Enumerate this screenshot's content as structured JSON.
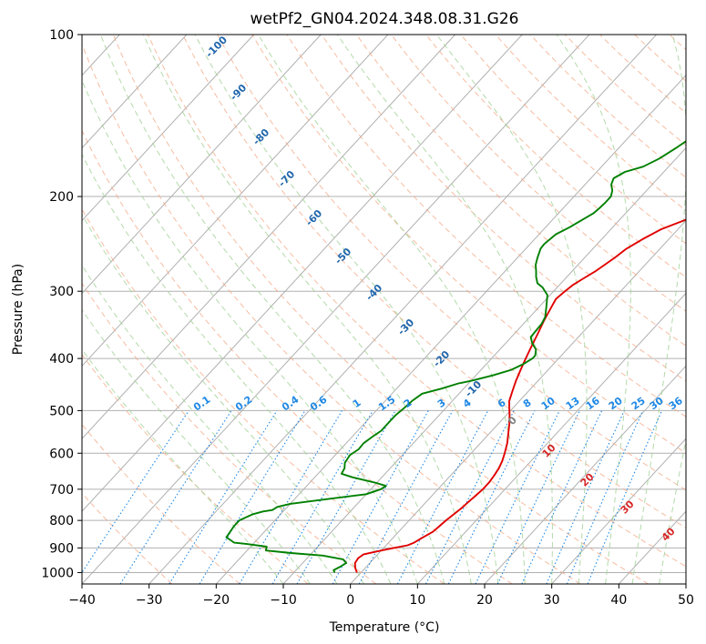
{
  "chart_data": {
    "type": "line",
    "title": "wetPf2_GN04.2024.348.08.31.G26",
    "xlabel": "Temperature (°C)",
    "ylabel": "Pressure (hPa)",
    "xlim": [
      -40,
      50
    ],
    "ylim": [
      1050,
      100
    ],
    "y_scale": "log",
    "x_ticks": [
      "−40",
      "−30",
      "−20",
      "−10",
      "0",
      "10",
      "20",
      "30",
      "40",
      "50"
    ],
    "y_ticks": [
      {
        "p": 100,
        "label": "100"
      },
      {
        "p": 200,
        "label": "200"
      },
      {
        "p": 300,
        "label": "300"
      },
      {
        "p": 400,
        "label": "400"
      },
      {
        "p": 500,
        "label": "500"
      },
      {
        "p": 600,
        "label": "600"
      },
      {
        "p": 700,
        "label": "700"
      },
      {
        "p": 800,
        "label": "800"
      },
      {
        "p": 900,
        "label": "900"
      },
      {
        "p": 1000,
        "label": "1000"
      }
    ],
    "grid": true,
    "series": [
      {
        "color": "#e00000",
        "points": [
          [
            -0.6,
            1000
          ],
          [
            -1.5,
            980
          ],
          [
            -2.2,
            960
          ],
          [
            -2.4,
            940
          ],
          [
            -2.1,
            925
          ],
          [
            0.0,
            910
          ],
          [
            1.5,
            900
          ],
          [
            3.2,
            890
          ],
          [
            3.8,
            880
          ],
          [
            4.4,
            860
          ],
          [
            5.1,
            840
          ],
          [
            5.3,
            820
          ],
          [
            5.5,
            800
          ],
          [
            5.8,
            780
          ],
          [
            6.1,
            760
          ],
          [
            6.3,
            740
          ],
          [
            6.5,
            720
          ],
          [
            6.7,
            700
          ],
          [
            6.7,
            680
          ],
          [
            6.5,
            660
          ],
          [
            6.2,
            640
          ],
          [
            5.7,
            620
          ],
          [
            5.0,
            600
          ],
          [
            4.0,
            575
          ],
          [
            3.0,
            555
          ],
          [
            1.7,
            530
          ],
          [
            0.5,
            510
          ],
          [
            -0.5,
            495
          ],
          [
            -1.5,
            480
          ],
          [
            -2.4,
            460
          ],
          [
            -3.3,
            440
          ],
          [
            -4.1,
            420
          ],
          [
            -4.9,
            400
          ],
          [
            -5.7,
            380
          ],
          [
            -6.5,
            360
          ],
          [
            -7.4,
            340
          ],
          [
            -8.2,
            320
          ],
          [
            -8.6,
            310
          ],
          [
            -8.3,
            300
          ],
          [
            -8.0,
            292
          ],
          [
            -7.4,
            285
          ],
          [
            -6.5,
            275
          ],
          [
            -5.5,
            260
          ],
          [
            -5.0,
            250
          ],
          [
            -3.9,
            240
          ],
          [
            -2.5,
            230
          ],
          [
            0.1,
            220
          ],
          [
            3.2,
            210
          ],
          [
            6.7,
            200
          ],
          [
            9.7,
            192
          ],
          [
            12.2,
            185
          ],
          [
            14.0,
            178
          ],
          [
            15.9,
            170
          ],
          [
            17.6,
            163
          ],
          [
            20.0,
            156
          ],
          [
            23.5,
            150
          ],
          [
            27.6,
            143
          ],
          [
            29.3,
            135
          ],
          [
            31.5,
            128
          ],
          [
            33.8,
            121
          ],
          [
            37.1,
            114
          ],
          [
            40.2,
            108
          ],
          [
            42.5,
            103
          ],
          [
            43.5,
            100
          ]
        ]
      },
      {
        "color": "#008000",
        "points": [
          [
            -3.9,
            1000
          ],
          [
            -4.4,
            990
          ],
          [
            -3.9,
            975
          ],
          [
            -3.5,
            960
          ],
          [
            -4.5,
            945
          ],
          [
            -8.0,
            930
          ],
          [
            -13.1,
            920
          ],
          [
            -17.2,
            910
          ],
          [
            -17.6,
            895
          ],
          [
            -20.9,
            885
          ],
          [
            -23.0,
            880
          ],
          [
            -24.9,
            860
          ],
          [
            -25.3,
            820
          ],
          [
            -25.3,
            800
          ],
          [
            -24.2,
            780
          ],
          [
            -23.0,
            770
          ],
          [
            -21.8,
            765
          ],
          [
            -21.5,
            755
          ],
          [
            -20.0,
            745
          ],
          [
            -15.0,
            730
          ],
          [
            -10.0,
            715
          ],
          [
            -8.5,
            700
          ],
          [
            -8.2,
            690
          ],
          [
            -10.4,
            680
          ],
          [
            -14.4,
            665
          ],
          [
            -16.5,
            655
          ],
          [
            -16.8,
            640
          ],
          [
            -17.5,
            625
          ],
          [
            -17.8,
            605
          ],
          [
            -17.3,
            590
          ],
          [
            -17.4,
            575
          ],
          [
            -17.0,
            560
          ],
          [
            -16.5,
            545
          ],
          [
            -16.5,
            530
          ],
          [
            -16.5,
            510
          ],
          [
            -16.2,
            495
          ],
          [
            -16.0,
            480
          ],
          [
            -15.5,
            465
          ],
          [
            -13.3,
            455
          ],
          [
            -11.5,
            445
          ],
          [
            -9.9,
            440
          ],
          [
            -7.5,
            430
          ],
          [
            -5.5,
            420
          ],
          [
            -4.5,
            410
          ],
          [
            -3.9,
            400
          ],
          [
            -3.9,
            395
          ],
          [
            -4.6,
            385
          ],
          [
            -6.0,
            375
          ],
          [
            -7.1,
            365
          ],
          [
            -7.2,
            355
          ],
          [
            -7.3,
            345
          ],
          [
            -7.7,
            335
          ],
          [
            -9.0,
            320
          ],
          [
            -10.4,
            305
          ],
          [
            -12.2,
            295
          ],
          [
            -13.5,
            290
          ],
          [
            -14.6,
            282
          ],
          [
            -15.4,
            275
          ],
          [
            -16.3,
            268
          ],
          [
            -17.0,
            260
          ],
          [
            -17.8,
            250
          ],
          [
            -17.9,
            245
          ],
          [
            -17.5,
            235
          ],
          [
            -16.4,
            228
          ],
          [
            -15.7,
            222
          ],
          [
            -14.8,
            215
          ],
          [
            -14.6,
            210
          ],
          [
            -14.5,
            205
          ],
          [
            -14.5,
            200
          ],
          [
            -15.1,
            195
          ],
          [
            -16.1,
            190
          ],
          [
            -16.6,
            185
          ],
          [
            -15.8,
            180
          ],
          [
            -13.8,
            176
          ],
          [
            -12.5,
            170
          ],
          [
            -11.4,
            162
          ],
          [
            -10.2,
            152
          ],
          [
            -9.6,
            146
          ],
          [
            -9.4,
            140
          ],
          [
            -9.1,
            135
          ],
          [
            -8.3,
            128
          ],
          [
            -7.3,
            122
          ],
          [
            -6.1,
            116
          ],
          [
            -4.7,
            110
          ],
          [
            -3.7,
            106
          ],
          [
            -2.6,
            102
          ],
          [
            -1.9,
            100
          ]
        ]
      }
    ],
    "mixing_ratio_labels": [
      "0.1",
      "0.2",
      "0.4",
      "0.6",
      "1",
      "1.5",
      "2",
      "3",
      "4",
      "6",
      "8",
      "10",
      "13",
      "16",
      "20",
      "25",
      "30",
      "36"
    ],
    "mixing_ratio_values": [
      0.1,
      0.2,
      0.4,
      0.6,
      1,
      1.5,
      2,
      3,
      4,
      6,
      8,
      10,
      13,
      16,
      20,
      25,
      30,
      36
    ],
    "dry_adiabat_labels": [
      "-100",
      "-90",
      "-80",
      "-70",
      "-60",
      "-50",
      "-40",
      "-30",
      "-20",
      "-10"
    ],
    "moist_adiabat_labels": [
      "0",
      "10",
      "20",
      "30",
      "40"
    ],
    "colors": {
      "temperature": "#e00000",
      "dewpoint": "#008000",
      "isotherm": "#b0b0b0",
      "dry_adiabat": "#f4a582",
      "moist_adiabat": "#a6d49a",
      "mixing_ratio": "#1e88e5",
      "dry_adiabat_label": "#2166ac",
      "moist_adiabat_label": "#d62728"
    }
  }
}
